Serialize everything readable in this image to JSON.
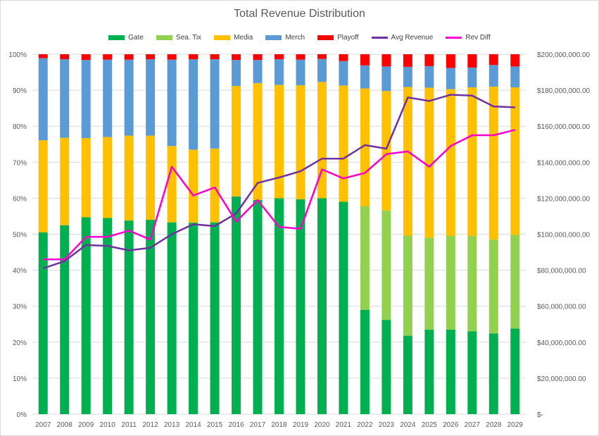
{
  "chart_data": {
    "type": "bar",
    "stacked": "percent",
    "title": "Total Revenue Distribution",
    "categories": [
      "2007",
      "2008",
      "2009",
      "2010",
      "2011",
      "2012",
      "2013",
      "2014",
      "2015",
      "2016",
      "2017",
      "2018",
      "2019",
      "2020",
      "2021",
      "2022",
      "2023",
      "2024",
      "2025",
      "2026",
      "2027",
      "2028",
      "2029"
    ],
    "y_ticks": [
      "0%",
      "10%",
      "20%",
      "30%",
      "40%",
      "50%",
      "60%",
      "70%",
      "80%",
      "90%",
      "100%"
    ],
    "y2_ticks": [
      "$-",
      "$20,000,000.00",
      "$40,000,000.00",
      "$60,000,000.00",
      "$80,000,000.00",
      "$100,000,000.00",
      "$120,000,000.00",
      "$140,000,000.00",
      "$160,000,000.00",
      "$180,000,000.00",
      "$200,000,000.00"
    ],
    "ylim": [
      0,
      100
    ],
    "y2lim": [
      0,
      200000000
    ],
    "grid": true,
    "legend_position": "top",
    "bar_series": [
      {
        "name": "Gate",
        "color": "#00b050",
        "values": [
          50.5,
          52.5,
          54.7,
          54.5,
          53.8,
          54.0,
          53.3,
          53.2,
          53.3,
          60.5,
          59.5,
          60.0,
          59.7,
          60.0,
          59.0,
          29.0,
          26.2,
          21.8,
          23.5,
          23.5,
          23.0,
          22.4,
          23.8
        ]
      },
      {
        "name": "Sea. Tix",
        "color": "#92d050",
        "values": [
          0,
          0,
          0,
          0,
          0,
          0,
          0,
          0,
          0,
          0,
          0,
          0,
          0,
          0,
          0,
          28.8,
          30.4,
          27.8,
          25.5,
          26.0,
          26.5,
          26.1,
          26.0
        ]
      },
      {
        "name": "Media",
        "color": "#ffc000",
        "values": [
          25.6,
          24.3,
          22.0,
          22.5,
          23.6,
          23.4,
          21.2,
          20.3,
          20.5,
          30.7,
          32.5,
          31.5,
          31.7,
          32.3,
          32.3,
          32.7,
          33.2,
          41.3,
          41.7,
          40.8,
          41.3,
          42.5,
          41.0
        ]
      },
      {
        "name": "Merch",
        "color": "#5b9bd5",
        "values": [
          22.8,
          21.8,
          21.7,
          21.5,
          21.1,
          21.2,
          24.0,
          25.1,
          24.8,
          7.2,
          6.4,
          7.1,
          7.1,
          6.4,
          6.8,
          6.4,
          6.8,
          5.6,
          6.0,
          5.9,
          5.5,
          6.0,
          5.8
        ]
      },
      {
        "name": "Playoff",
        "color": "#ff0000",
        "values": [
          1.1,
          1.4,
          1.6,
          1.5,
          1.5,
          1.4,
          1.5,
          1.4,
          1.4,
          1.6,
          1.6,
          1.4,
          1.5,
          1.3,
          1.9,
          3.1,
          3.4,
          3.5,
          3.3,
          3.8,
          3.7,
          3.0,
          3.4
        ]
      }
    ],
    "line_series": [
      {
        "name": "Avg Revenue",
        "color": "#7030a0",
        "axis": "secondary",
        "values": [
          81000000,
          85000000,
          94000000,
          93500000,
          91000000,
          92500000,
          100000000,
          105500000,
          104500000,
          111500000,
          128500000,
          131500000,
          135000000,
          142000000,
          142000000,
          149500000,
          147500000,
          176000000,
          174000000,
          177500000,
          177000000,
          171000000,
          170500000
        ]
      },
      {
        "name": "Rev Diff",
        "color": "#ff00cc",
        "axis": "secondary",
        "values": [
          86000000,
          86000000,
          98500000,
          98500000,
          102000000,
          97000000,
          137500000,
          121500000,
          126000000,
          107000000,
          119000000,
          104000000,
          103000000,
          136000000,
          131000000,
          134000000,
          144500000,
          146000000,
          137500000,
          149000000,
          155000000,
          155000000,
          158000000
        ]
      }
    ]
  }
}
